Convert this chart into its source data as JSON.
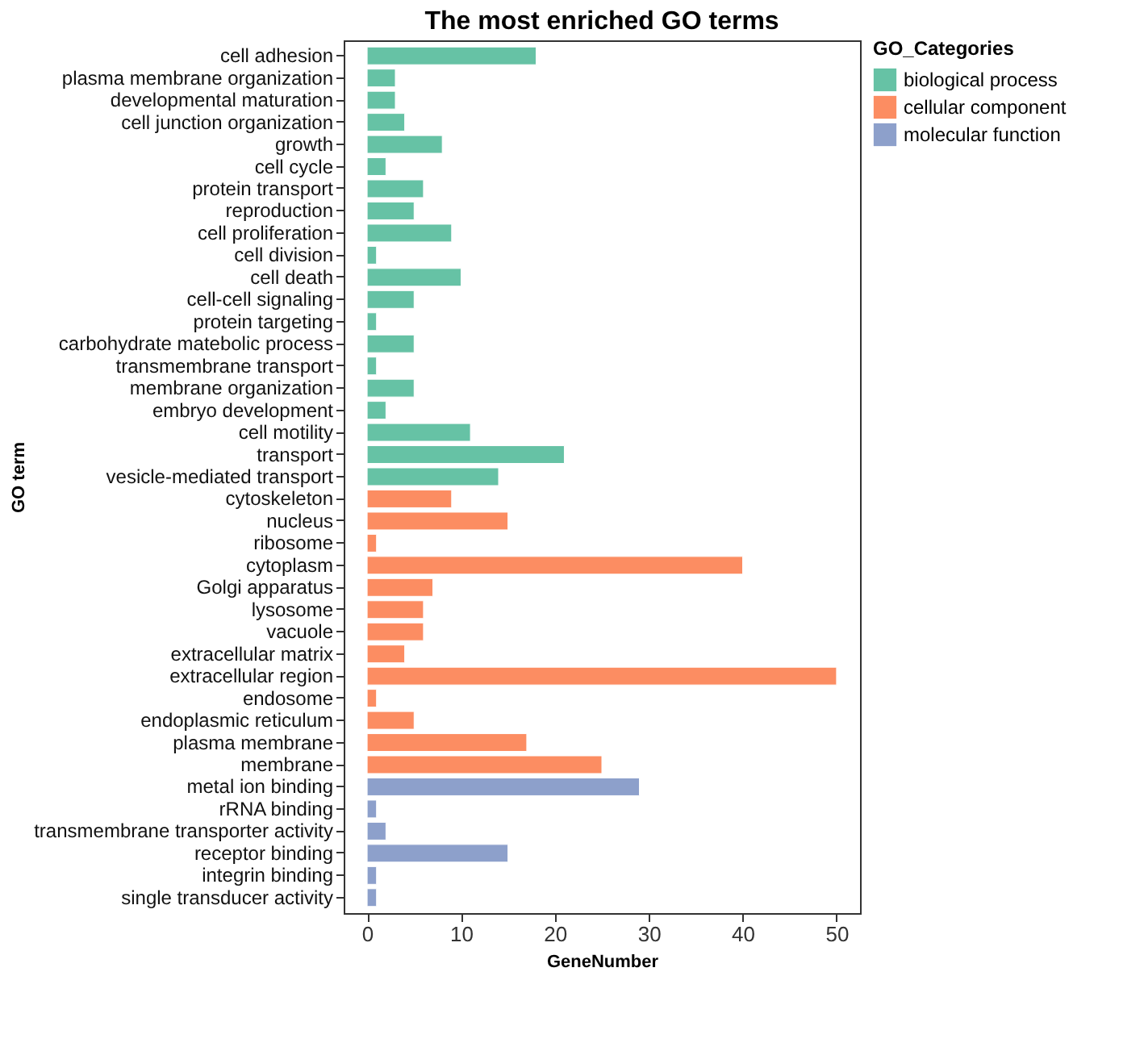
{
  "chart_data": {
    "type": "bar",
    "orientation": "horizontal",
    "title": "The most enriched GO terms",
    "xlabel": "GeneNumber",
    "ylabel": "GO term",
    "legend_title": "GO_Categories",
    "legend": "right",
    "grid": false,
    "categories": [
      "cell adhesion",
      "plasma membrane organization",
      "developmental maturation",
      "cell junction organization",
      "growth",
      "cell cycle",
      "protein transport",
      "reproduction",
      "cell proliferation",
      "cell division",
      "cell death",
      "cell-cell signaling",
      "protein targeting",
      "carbohydrate matebolic process",
      "transmembrane transport",
      "membrane organization",
      "embryo development",
      "cell motility",
      "transport",
      "vesicle-mediated transport",
      "cytoskeleton",
      "nucleus",
      "ribosome",
      "cytoplasm",
      "Golgi apparatus",
      "lysosome",
      "vacuole",
      "extracellular matrix",
      "extracellular region",
      "endosome",
      "endoplasmic reticulum",
      "plasma membrane",
      "membrane",
      "metal ion binding",
      "rRNA binding",
      "transmembrane transporter activity",
      "receptor binding",
      "integrin binding",
      "single transducer activity"
    ],
    "series": [
      {
        "name": "biological process",
        "color": "#66c2a5",
        "values": [
          18,
          3,
          3,
          4,
          8,
          2,
          6,
          5,
          9,
          1,
          10,
          5,
          1,
          5,
          1,
          5,
          2,
          11,
          21,
          14,
          null,
          null,
          null,
          null,
          null,
          null,
          null,
          null,
          null,
          null,
          null,
          null,
          null,
          null,
          null,
          null,
          null,
          null,
          null
        ]
      },
      {
        "name": "cellular component",
        "color": "#fc8d62",
        "values": [
          null,
          null,
          null,
          null,
          null,
          null,
          null,
          null,
          null,
          null,
          null,
          null,
          null,
          null,
          null,
          null,
          null,
          null,
          null,
          null,
          9,
          15,
          1,
          40,
          7,
          6,
          6,
          4,
          50,
          1,
          5,
          17,
          25,
          null,
          null,
          null,
          null,
          null,
          null
        ]
      },
      {
        "name": "molecular function",
        "color": "#8da0cb",
        "values": [
          null,
          null,
          null,
          null,
          null,
          null,
          null,
          null,
          null,
          null,
          null,
          null,
          null,
          null,
          null,
          null,
          null,
          null,
          null,
          null,
          null,
          null,
          null,
          null,
          null,
          null,
          null,
          null,
          null,
          null,
          null,
          null,
          null,
          29,
          1,
          2,
          15,
          1,
          1
        ]
      }
    ],
    "xlim": [
      -2.5,
      52.5
    ],
    "xticks": [
      0,
      10,
      20,
      30,
      40,
      50
    ]
  }
}
